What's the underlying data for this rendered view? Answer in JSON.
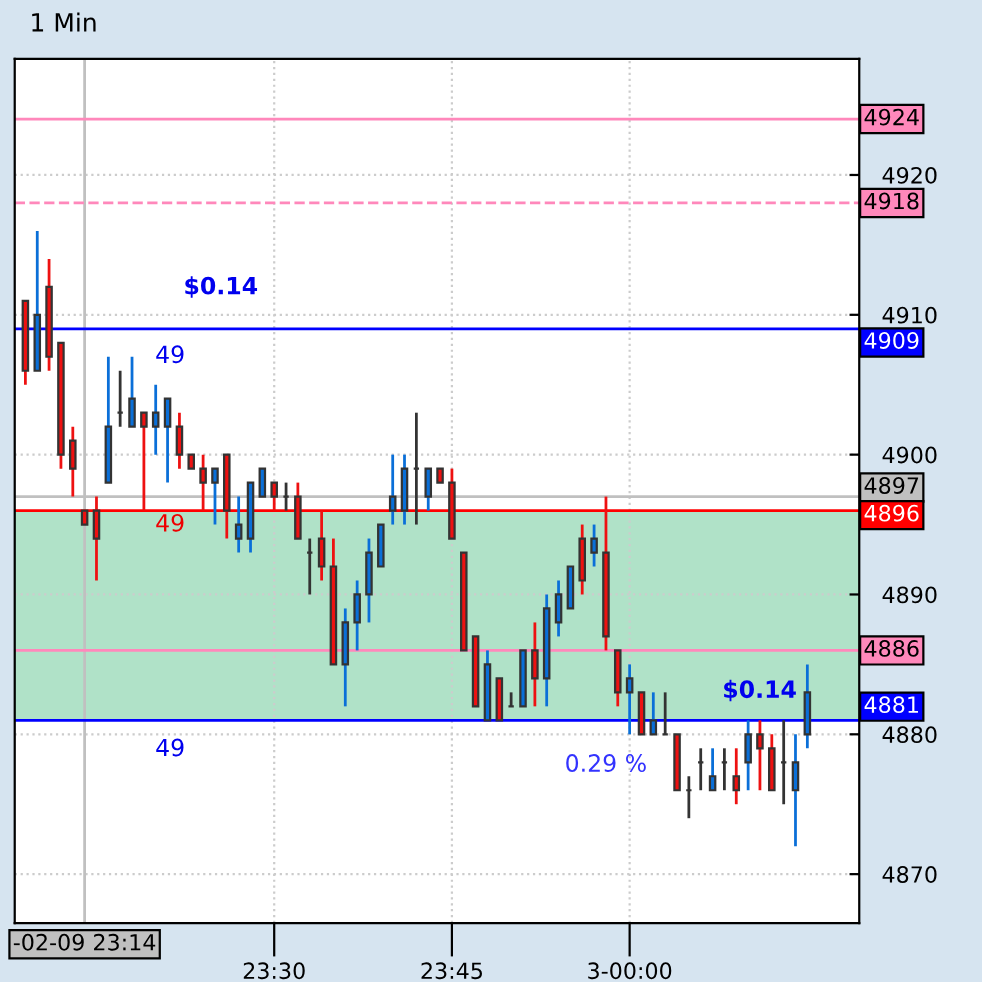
{
  "chart_data": {
    "type": "candlestick",
    "title": "1 Min",
    "x": [
      23.15,
      23.1667,
      23.1833,
      23.2,
      23.2167,
      23.2333,
      23.25,
      23.2667,
      23.2833,
      23.3,
      23.3167,
      23.3333,
      23.35,
      23.3667,
      23.3833,
      23.4,
      23.4167,
      23.4333,
      23.45,
      23.4667,
      23.4833,
      23.5,
      23.5167,
      23.5333,
      23.55,
      23.5667,
      23.5833,
      23.6,
      23.6167,
      23.6333,
      23.65,
      23.6667,
      23.6833,
      23.7,
      23.7167,
      23.7333,
      23.75,
      23.7667,
      23.7833,
      23.8,
      23.8167,
      23.8333,
      23.85,
      23.8667,
      23.8833,
      23.9,
      23.9167,
      23.9333,
      23.95,
      23.9667,
      23.9833,
      24.0,
      24.0167,
      24.0333,
      24.05,
      24.0667,
      24.0833,
      24.1,
      24.1167,
      24.1333,
      24.15,
      24.1667,
      24.1833,
      24.2,
      24.2167,
      24.2333,
      24.25
    ],
    "ohlc": [
      [
        4911,
        4911,
        4905,
        4906
      ],
      [
        4906,
        4916,
        4906,
        4910
      ],
      [
        4912,
        4914,
        4906,
        4907
      ],
      [
        4908,
        4908,
        4899,
        4900
      ],
      [
        4901,
        4902,
        4897,
        4899
      ],
      [
        4896,
        4896,
        4895,
        4895
      ],
      [
        4896,
        4897,
        4891,
        4894
      ],
      [
        4898,
        4907,
        4898,
        4902
      ],
      [
        4903,
        4906,
        4902,
        4903
      ],
      [
        4902,
        4907,
        4902,
        4904
      ],
      [
        4903,
        4903,
        4896,
        4902
      ],
      [
        4902,
        4905,
        4900,
        4903
      ],
      [
        4902,
        4904,
        4898,
        4904
      ],
      [
        4902,
        4903,
        4899,
        4900
      ],
      [
        4900,
        4900,
        4899,
        4899
      ],
      [
        4899,
        4900,
        4896,
        4898
      ],
      [
        4898,
        4899,
        4895,
        4899
      ],
      [
        4900,
        4900,
        4894,
        4896
      ],
      [
        4894,
        4897,
        4893,
        4895
      ],
      [
        4894,
        4898,
        4893,
        4898
      ],
      [
        4897,
        4899,
        4897,
        4899
      ],
      [
        4898,
        4898,
        4896,
        4897
      ],
      [
        4897,
        4898,
        4896,
        4897
      ],
      [
        4897,
        4898,
        4894,
        4894
      ],
      [
        4893,
        4894,
        4890,
        4893
      ],
      [
        4894,
        4896,
        4891,
        4892
      ],
      [
        4892,
        4894,
        4885,
        4885
      ],
      [
        4885,
        4889,
        4882,
        4888
      ],
      [
        4888,
        4891,
        4886,
        4890
      ],
      [
        4890,
        4894,
        4888,
        4893
      ],
      [
        4892,
        4895,
        4892,
        4895
      ],
      [
        4896,
        4900,
        4895,
        4897
      ],
      [
        4896,
        4900,
        4895,
        4899
      ],
      [
        4899,
        4903,
        4895,
        4899
      ],
      [
        4897,
        4899,
        4896,
        4899
      ],
      [
        4899,
        4899,
        4898,
        4898
      ],
      [
        4898,
        4899,
        4894,
        4894
      ],
      [
        4893,
        4893,
        4886,
        4886
      ],
      [
        4887,
        4887,
        4882,
        4882
      ],
      [
        4881,
        4886,
        4881,
        4885
      ],
      [
        4884,
        4884,
        4881,
        4881
      ],
      [
        4882,
        4883,
        4882,
        4882
      ],
      [
        4882,
        4886,
        4882,
        4886
      ],
      [
        4886,
        4888,
        4882,
        4884
      ],
      [
        4884,
        4890,
        4882,
        4889
      ],
      [
        4888,
        4891,
        4887,
        4890
      ],
      [
        4889,
        4892,
        4889,
        4892
      ],
      [
        4894,
        4895,
        4890,
        4891
      ],
      [
        4893,
        4895,
        4892,
        4894
      ],
      [
        4893,
        4897,
        4886,
        4887
      ],
      [
        4886,
        4886,
        4882,
        4883
      ],
      [
        4883,
        4885,
        4880,
        4884
      ],
      [
        4883,
        4883,
        4880,
        4880
      ],
      [
        4880,
        4883,
        4880,
        4881
      ],
      [
        4880,
        4883,
        4880,
        4880
      ],
      [
        4880,
        4880,
        4876,
        4876
      ],
      [
        4876,
        4877,
        4874,
        4876
      ],
      [
        4878,
        4879,
        4876,
        4878
      ],
      [
        4876,
        4879,
        4876,
        4877
      ],
      [
        4878,
        4879,
        4876,
        4878
      ],
      [
        4877,
        4879,
        4875,
        4876
      ],
      [
        4878,
        4881,
        4876,
        4880
      ],
      [
        4880,
        4881,
        4876,
        4879
      ],
      [
        4879,
        4880,
        4876,
        4876
      ],
      [
        4878,
        4881,
        4875,
        4878
      ],
      [
        4876,
        4880,
        4872,
        4878
      ],
      [
        4880,
        4885,
        4879,
        4883
      ]
    ],
    "colors": [
      "#ee1111",
      "#0a6fd8",
      "#ee1111",
      "#ee1111",
      "#ee1111",
      "#ee1111",
      "#ee1111",
      "#0a6fd8",
      "#333333",
      "#0a6fd8",
      "#ee1111",
      "#0a6fd8",
      "#0a6fd8",
      "#ee1111",
      "#ee1111",
      "#ee1111",
      "#0a6fd8",
      "#ee1111",
      "#0a6fd8",
      "#0a6fd8",
      "#0a6fd8",
      "#ee1111",
      "#333333",
      "#ee1111",
      "#333333",
      "#ee1111",
      "#ee1111",
      "#0a6fd8",
      "#0a6fd8",
      "#0a6fd8",
      "#0a6fd8",
      "#0a6fd8",
      "#0a6fd8",
      "#333333",
      "#0a6fd8",
      "#ee1111",
      "#ee1111",
      "#ee1111",
      "#ee1111",
      "#0a6fd8",
      "#ee1111",
      "#333333",
      "#0a6fd8",
      "#ee1111",
      "#0a6fd8",
      "#0a6fd8",
      "#0a6fd8",
      "#ee1111",
      "#0a6fd8",
      "#ee1111",
      "#ee1111",
      "#0a6fd8",
      "#ee1111",
      "#0a6fd8",
      "#333333",
      "#ee1111",
      "#333333",
      "#333333",
      "#0a6fd8",
      "#333333",
      "#ee1111",
      "#0a6fd8",
      "#ee1111",
      "#ee1111",
      "#333333",
      "#0a6fd8",
      "#0a6fd8"
    ],
    "xlim": [
      23.135,
      24.323
    ],
    "xticks": [
      {
        "value": 23.5,
        "label": "23:30"
      },
      {
        "value": 23.75,
        "label": "23:45"
      },
      {
        "value": 24.0,
        "label": "3-00:00"
      }
    ],
    "ylim": [
      4866.5,
      4928.3
    ],
    "yticks": [
      4870,
      4880,
      4890,
      4900,
      4910,
      4920
    ],
    "grid": true,
    "ref_lines": [
      {
        "axis": "x",
        "value": 23.2333,
        "label": "-02-09 23:14",
        "color": "#c0c0c0"
      },
      {
        "axis": "y",
        "value": 4924,
        "label": "4924",
        "color": "#ff88bb"
      },
      {
        "axis": "y",
        "value": 4918,
        "label": "4918",
        "color": "#ff88bb",
        "line_style": "dashed"
      },
      {
        "axis": "y",
        "value": 4909,
        "label": "4909",
        "color": "#0000ff"
      },
      {
        "axis": "y",
        "value": 4897,
        "label": "4897",
        "color": "#c0c0c0"
      },
      {
        "axis": "y",
        "value": 4896,
        "label": "4896",
        "color": "#ff0000"
      },
      {
        "axis": "y",
        "value": 4886,
        "label": "4886",
        "color": "#ff88bb"
      },
      {
        "axis": "y",
        "value": 4881,
        "label": "4881",
        "color": "#0000ff"
      }
    ],
    "bands": [
      {
        "axis": "y",
        "from": 4881,
        "to": 4896,
        "color": "#b0e2c8"
      }
    ],
    "annotations": [
      "$0.14",
      "49",
      "49",
      "49",
      "$0.14",
      "0.29 %"
    ]
  }
}
